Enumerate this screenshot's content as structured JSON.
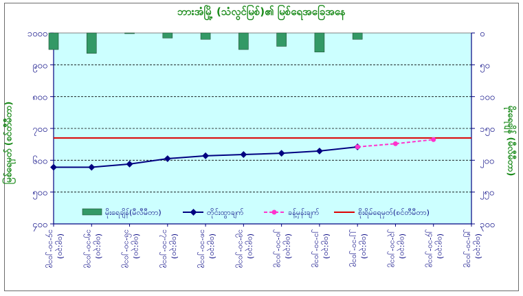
{
  "chart_data": {
    "type": "bar+line",
    "title": "ဘားအံမြို့ (သံလွင်မြစ်)၏ မြစ်ရေအခြေအနေ",
    "y_left_label": "မြစ်ရေမှတ် (စင်တီမီတာ)",
    "y_right_label": "မိုးရေချိန် (မီလီမီတာ)",
    "categories": [
      "၁၄-၁၀-၂၀၁၉",
      "၁၅-၁၀-၂၀၁၉",
      "၁၆-၁၀-၂၀၁၉",
      "၁၇-၁၀-၂၀၁၉",
      "၁၈-၁၀-၂၀၁၉",
      "၁၉-၁၀-၂၀၁၉",
      "၂၀-၁၀-၂၀၁၉",
      "၂၁-၁၀-၂၀၁၉",
      "၂၂-၁၀-၂၀၁၉",
      "၂၃-၁၀-၂၀၁၉",
      "၂၄-၁၀-၂၀၁၉",
      "၂၅-၁၀-၂၀၁၉"
    ],
    "category_time": "(၀၉:၃၀)",
    "ylim_left": [
      400,
      1000
    ],
    "yticks_left": [
      {
        "v": 400,
        "label": "၄၀၀"
      },
      {
        "v": 500,
        "label": "၅၀၀"
      },
      {
        "v": 600,
        "label": "၆၀၀"
      },
      {
        "v": 700,
        "label": "၇၀၀"
      },
      {
        "v": 800,
        "label": "၈၀၀"
      },
      {
        "v": 900,
        "label": "၉၀၀"
      },
      {
        "v": 1000,
        "label": "၁၀၀၀"
      }
    ],
    "ylim_right": [
      0,
      300
    ],
    "yticks_right": [
      {
        "v": 0,
        "label": "၀"
      },
      {
        "v": 50,
        "label": "၅၀"
      },
      {
        "v": 100,
        "label": "၁၀၀"
      },
      {
        "v": 150,
        "label": "၁၅၀"
      },
      {
        "v": 200,
        "label": "၂၀၀"
      },
      {
        "v": 250,
        "label": "၂၅၀"
      },
      {
        "v": 300,
        "label": "၃၀၀"
      }
    ],
    "right_axis_inverted": true,
    "grid": "horizontal dashed",
    "plot_background": "#ccffff",
    "legend_position": "bottom",
    "series": [
      {
        "name": "မိုးရေချိန်(မီလီမီတာ)",
        "type": "bar",
        "axis": "right",
        "color": "#339966",
        "values": [
          26,
          32,
          0.5,
          8,
          10,
          26,
          21,
          30,
          10,
          null,
          null,
          null
        ]
      },
      {
        "name": "တိုင်းထွာချက်",
        "type": "line",
        "axis": "left",
        "color": "#000080",
        "values": [
          578,
          578,
          588,
          605,
          614,
          618,
          622,
          629,
          642,
          null,
          null,
          null
        ]
      },
      {
        "name": "ခန့်မှန်းချက်",
        "type": "line-dashed",
        "axis": "left",
        "color": "#ff33cc",
        "values": [
          null,
          null,
          null,
          null,
          null,
          null,
          null,
          null,
          642,
          652,
          665,
          null
        ]
      },
      {
        "name": "စိုးရိမ်ရေမှတ်(စင်တီမီတာ)",
        "type": "hline",
        "axis": "left",
        "color": "#dd0000",
        "value": 670
      }
    ]
  }
}
